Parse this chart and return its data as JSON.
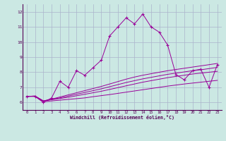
{
  "xlabel": "Windchill (Refroidissement éolien,°C)",
  "bg_color": "#cbe8e3",
  "grid_color": "#aab4cc",
  "line_color": "#990099",
  "axis_color": "#550055",
  "xlim": [
    -0.5,
    23.5
  ],
  "ylim": [
    5.5,
    12.5
  ],
  "xticks": [
    0,
    1,
    2,
    3,
    4,
    5,
    6,
    7,
    8,
    9,
    10,
    11,
    12,
    13,
    14,
    15,
    16,
    17,
    18,
    19,
    20,
    21,
    22,
    23
  ],
  "yticks": [
    6,
    7,
    8,
    9,
    10,
    11,
    12
  ],
  "series": {
    "main": [
      6.4,
      6.4,
      6.0,
      6.3,
      7.4,
      7.0,
      8.1,
      7.8,
      8.3,
      8.8,
      10.4,
      11.0,
      11.6,
      11.2,
      11.85,
      11.0,
      10.65,
      9.8,
      7.85,
      7.5,
      8.1,
      8.2,
      7.0,
      8.5
    ],
    "line1": [
      6.4,
      6.4,
      6.05,
      6.1,
      6.15,
      6.2,
      6.25,
      6.3,
      6.38,
      6.45,
      6.52,
      6.6,
      6.68,
      6.76,
      6.84,
      6.92,
      7.0,
      7.08,
      7.15,
      7.22,
      7.28,
      7.34,
      7.4,
      7.46
    ],
    "line2": [
      6.4,
      6.42,
      6.1,
      6.18,
      6.26,
      6.34,
      6.44,
      6.54,
      6.64,
      6.74,
      6.86,
      6.98,
      7.1,
      7.22,
      7.34,
      7.44,
      7.54,
      7.64,
      7.72,
      7.8,
      7.88,
      7.94,
      8.0,
      8.06
    ],
    "line3": [
      6.4,
      6.42,
      6.1,
      6.2,
      6.3,
      6.42,
      6.54,
      6.66,
      6.78,
      6.9,
      7.04,
      7.18,
      7.32,
      7.44,
      7.56,
      7.66,
      7.76,
      7.86,
      7.94,
      8.02,
      8.1,
      8.16,
      8.24,
      8.32
    ],
    "line4": [
      6.4,
      6.42,
      6.1,
      6.22,
      6.36,
      6.5,
      6.64,
      6.78,
      6.92,
      7.06,
      7.22,
      7.38,
      7.54,
      7.68,
      7.8,
      7.9,
      8.0,
      8.1,
      8.18,
      8.26,
      8.34,
      8.42,
      8.5,
      8.58
    ]
  }
}
